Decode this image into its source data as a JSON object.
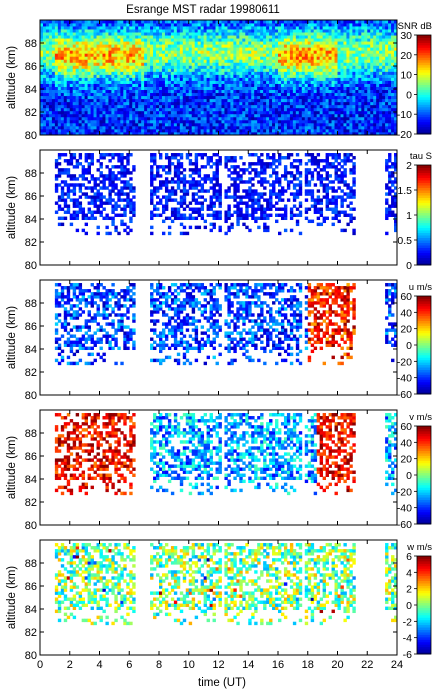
{
  "chart_data": [
    {
      "type": "heatmap",
      "title": "Esrange MST radar 19980611",
      "quantity": "SNR",
      "colorbar_label": "SNR dB",
      "ylabel": "altitude (km)",
      "xlim": [
        0,
        24
      ],
      "ylim": [
        80,
        90
      ],
      "yticks": [
        80,
        82,
        84,
        86,
        88
      ],
      "clim": [
        -20,
        30
      ],
      "cticks": [
        -20,
        -10,
        0,
        10,
        20,
        30
      ],
      "coverage": "continuous 0-24 UT, 80-90 km; strongest echoes (>20 dB) around 86-89 km between 1-7 UT and 16-20 UT"
    },
    {
      "type": "heatmap",
      "quantity": "tau",
      "colorbar_label": "tau S",
      "ylabel": "altitude (km)",
      "xlim": [
        0,
        24
      ],
      "ylim": [
        80,
        90
      ],
      "yticks": [
        80,
        82,
        84,
        86,
        88
      ],
      "clim": [
        0,
        2
      ],
      "cticks": [
        0,
        0.5,
        1,
        1.5,
        2
      ],
      "coverage": "sparse, mostly low values (~0.1-0.4 s) between 84-89 km"
    },
    {
      "type": "heatmap",
      "quantity": "u",
      "colorbar_label": "u m/s",
      "ylabel": "altitude (km)",
      "xlim": [
        0,
        24
      ],
      "ylim": [
        80,
        90
      ],
      "yticks": [
        80,
        82,
        84,
        86,
        88
      ],
      "clim": [
        -60,
        60
      ],
      "cticks": [
        -60,
        -40,
        -20,
        0,
        20,
        40,
        60
      ],
      "coverage": "mostly negative (~-50 m/s) 1-17 UT, positive (~+30 to +60 m/s) 18-21 UT"
    },
    {
      "type": "heatmap",
      "quantity": "v",
      "colorbar_label": "v m/s",
      "ylabel": "altitude (km)",
      "xlim": [
        0,
        24
      ],
      "ylim": [
        80,
        90
      ],
      "yticks": [
        80,
        82,
        84,
        86,
        88
      ],
      "clim": [
        -60,
        60
      ],
      "cticks": [
        -60,
        -40,
        -20,
        0,
        20,
        40,
        60
      ],
      "coverage": "strongly positive (~+50 m/s) 1-6 UT, negative (~-40 m/s) 7-17 UT, positive 19-21 UT"
    },
    {
      "type": "heatmap",
      "quantity": "w",
      "colorbar_label": "w m/s",
      "ylabel": "altitude (km)",
      "xlabel": "time (UT)",
      "xlim": [
        0,
        24
      ],
      "ylim": [
        80,
        90
      ],
      "yticks": [
        80,
        82,
        84,
        86,
        88
      ],
      "xticks": [
        0,
        2,
        4,
        6,
        8,
        10,
        12,
        14,
        16,
        18,
        20,
        22,
        24
      ],
      "clim": [
        -6,
        6
      ],
      "cticks": [
        -6,
        -4,
        -2,
        0,
        2,
        4,
        6
      ],
      "coverage": "mostly near 0 (-2 to +2 m/s) with scattered extremes"
    }
  ],
  "colors": {
    "colormap": [
      "#00008f",
      "#0000ff",
      "#0080ff",
      "#00ffff",
      "#80ff80",
      "#ffff00",
      "#ff8000",
      "#ff0000",
      "#800000"
    ],
    "background": "#ffffff"
  }
}
